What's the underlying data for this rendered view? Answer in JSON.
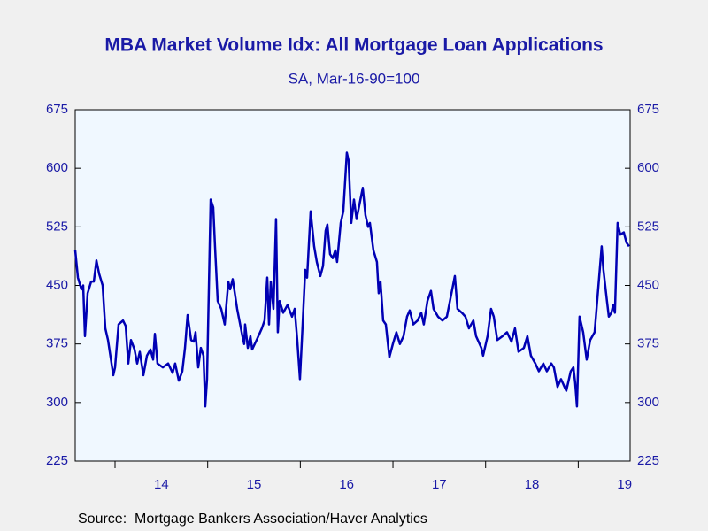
{
  "chart_data": {
    "type": "line",
    "title": "MBA Market Volume Idx: All Mortgage Loan Applications",
    "subtitle": "SA, Mar-16-90=100",
    "source": "Source:  Mortgage Bankers Association/Haver Analytics",
    "x": [
      2013.57,
      2013.599,
      2013.637,
      2013.656,
      2013.675,
      2013.704,
      2013.742,
      2013.771,
      2013.799,
      2013.828,
      2013.866,
      2013.895,
      2013.924,
      2013.962,
      2013.981,
      2014.0,
      2014.038,
      2014.086,
      2014.115,
      2014.143,
      2014.172,
      2014.21,
      2014.239,
      2014.267,
      2014.306,
      2014.344,
      2014.382,
      2014.411,
      2014.43,
      2014.458,
      2014.516,
      2014.573,
      2014.621,
      2014.649,
      2014.688,
      2014.726,
      2014.755,
      2014.783,
      2014.821,
      2014.85,
      2014.869,
      2014.898,
      2014.926,
      2014.955,
      2014.974,
      2014.993,
      2015.032,
      2015.06,
      2015.079,
      2015.108,
      2015.146,
      2015.184,
      2015.223,
      2015.242,
      2015.27,
      2015.318,
      2015.375,
      2015.394,
      2015.404,
      2015.433,
      2015.461,
      2015.48,
      2015.528,
      2015.585,
      2015.614,
      2015.643,
      2015.662,
      2015.681,
      2015.71,
      2015.738,
      2015.757,
      2015.776,
      2015.815,
      2015.862,
      2015.91,
      2015.939,
      2015.967,
      2015.996,
      2016.025,
      2016.053,
      2016.073,
      2016.111,
      2016.149,
      2016.178,
      2016.216,
      2016.245,
      2016.273,
      2016.292,
      2016.321,
      2016.35,
      2016.378,
      2016.397,
      2016.436,
      2016.464,
      2016.502,
      2016.521,
      2016.55,
      2016.579,
      2016.607,
      2016.674,
      2016.703,
      2016.732,
      2016.751,
      2016.789,
      2016.827,
      2016.846,
      2016.865,
      2016.894,
      2016.923,
      2016.961,
      2016.999,
      2017.037,
      2017.075,
      2017.114,
      2017.152,
      2017.181,
      2017.219,
      2017.266,
      2017.305,
      2017.333,
      2017.372,
      2017.41,
      2017.438,
      2017.486,
      2017.534,
      2017.582,
      2017.668,
      2017.696,
      2017.744,
      2017.782,
      2017.82,
      2017.868,
      2017.897,
      2017.954,
      2017.973,
      2018.021,
      2018.059,
      2018.088,
      2018.126,
      2018.183,
      2018.231,
      2018.279,
      2018.317,
      2018.355,
      2018.413,
      2018.451,
      2018.489,
      2018.537,
      2018.575,
      2018.623,
      2018.661,
      2018.709,
      2018.737,
      2018.776,
      2018.814,
      2018.871,
      2018.919,
      2018.948,
      2018.967,
      2018.986,
      2019.014,
      2019.053,
      2019.091,
      2019.129,
      2019.177,
      2019.253,
      2019.272,
      2019.31,
      2019.33,
      2019.358,
      2019.377,
      2019.396,
      2019.425,
      2019.454,
      2019.492,
      2019.52,
      2019.549
    ],
    "series": [
      {
        "name": "MBA Market Volume Idx",
        "color": "#0000b4",
        "values": [
          495,
          460,
          445,
          450,
          385,
          440,
          455,
          455,
          482,
          465,
          450,
          395,
          380,
          350,
          335,
          345,
          400,
          405,
          398,
          350,
          380,
          368,
          350,
          365,
          335,
          360,
          368,
          355,
          388,
          350,
          345,
          350,
          338,
          350,
          328,
          340,
          370,
          412,
          380,
          378,
          390,
          345,
          370,
          360,
          295,
          330,
          560,
          550,
          500,
          430,
          420,
          400,
          455,
          445,
          458,
          420,
          385,
          375,
          400,
          370,
          385,
          368,
          380,
          395,
          405,
          460,
          400,
          455,
          420,
          535,
          390,
          430,
          415,
          425,
          410,
          420,
          380,
          330,
          400,
          470,
          460,
          545,
          500,
          480,
          462,
          475,
          520,
          528,
          490,
          485,
          495,
          480,
          530,
          545,
          620,
          610,
          530,
          560,
          535,
          575,
          540,
          525,
          530,
          495,
          480,
          440,
          455,
          405,
          400,
          358,
          375,
          390,
          375,
          385,
          410,
          418,
          400,
          405,
          415,
          400,
          430,
          443,
          420,
          410,
          405,
          410,
          462,
          420,
          415,
          410,
          395,
          405,
          385,
          370,
          360,
          385,
          420,
          410,
          380,
          385,
          390,
          378,
          395,
          365,
          370,
          385,
          360,
          350,
          340,
          350,
          340,
          350,
          345,
          320,
          330,
          315,
          340,
          345,
          325,
          295,
          410,
          390,
          355,
          380,
          390,
          500,
          470,
          430,
          410,
          415,
          425,
          415,
          530,
          515,
          518,
          505,
          500
        ]
      }
    ],
    "xlim": [
      2013.57,
      2019.56
    ],
    "xticks": [
      {
        "value": 2014.5,
        "label": "14"
      },
      {
        "value": 2015.5,
        "label": "15"
      },
      {
        "value": 2016.5,
        "label": "16"
      },
      {
        "value": 2017.5,
        "label": "17"
      },
      {
        "value": 2018.5,
        "label": "18"
      },
      {
        "value": 2019.5,
        "label": "19"
      }
    ],
    "x_minor_ticks": [
      2014,
      2015,
      2016,
      2017,
      2018,
      2019
    ],
    "ylim": [
      225,
      675
    ],
    "yticks": [
      225,
      300,
      375,
      450,
      525,
      600,
      675
    ],
    "y2lim": [
      225,
      675
    ],
    "y2ticks": [
      225,
      300,
      375,
      450,
      525,
      600,
      675
    ],
    "grid": false
  }
}
